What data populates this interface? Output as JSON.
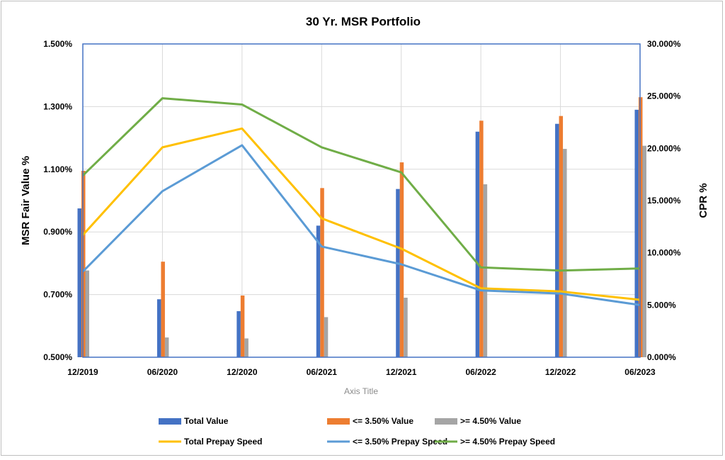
{
  "chart_data": {
    "type": "bar",
    "title": "30 Yr. MSR Portfolio",
    "xlabel": "Axis Title",
    "ylabel_left": "MSR Fair Value %",
    "ylabel_right": "CPR %",
    "categories": [
      "12/2019",
      "06/2020",
      "12/2020",
      "06/2021",
      "12/2021",
      "06/2022",
      "12/2022",
      "06/2023"
    ],
    "ylim_left": [
      0.5,
      1.5
    ],
    "yticks_left": [
      "0.500%",
      "0.700%",
      "0.900%",
      "1.100%",
      "1.300%",
      "1.500%"
    ],
    "ylim_right": [
      0,
      30
    ],
    "yticks_right": [
      "0.000%",
      "5.000%",
      "10.000%",
      "15.000%",
      "20.000%",
      "25.000%",
      "30.000%"
    ],
    "grid": true,
    "legend_position": "bottom",
    "bar_series": [
      {
        "name": "Total Value",
        "axis": "left",
        "color": "#4472c4",
        "values": [
          0.975,
          0.685,
          0.647,
          0.92,
          1.037,
          1.22,
          1.245,
          1.29
        ]
      },
      {
        "name": "<= 3.50% Value",
        "axis": "left",
        "color": "#ed7d31",
        "values": [
          1.095,
          0.805,
          0.697,
          1.04,
          1.122,
          1.255,
          1.27,
          1.33
        ]
      },
      {
        "name": ">= 4.50% Value",
        "axis": "left",
        "color": "#a5a5a5",
        "values": [
          0.777,
          0.563,
          0.56,
          0.628,
          0.69,
          1.052,
          1.165,
          1.175
        ]
      }
    ],
    "line_series": [
      {
        "name": "Total Prepay Speed",
        "axis": "right",
        "color": "#ffc000",
        "values": [
          11.7,
          20.1,
          21.9,
          13.3,
          10.4,
          6.6,
          6.3,
          5.5
        ]
      },
      {
        "name": "<= 3.50% Prepay Speed",
        "axis": "right",
        "color": "#5b9bd5",
        "values": [
          8.2,
          15.9,
          20.3,
          10.6,
          8.9,
          6.4,
          6.1,
          5.0
        ]
      },
      {
        "name": ">= 4.50% Prepay Speed",
        "axis": "right",
        "color": "#70ad47",
        "values": [
          17.4,
          24.8,
          24.2,
          20.1,
          17.7,
          8.6,
          8.3,
          8.5
        ]
      }
    ],
    "legend": [
      {
        "label": "Total Value",
        "kind": "bar",
        "color": "#4472c4"
      },
      {
        "label": "<= 3.50% Value",
        "kind": "bar",
        "color": "#ed7d31"
      },
      {
        "label": ">= 4.50% Value",
        "kind": "bar",
        "color": "#a5a5a5"
      },
      {
        "label": "Total Prepay Speed",
        "kind": "line",
        "color": "#ffc000"
      },
      {
        "label": "<= 3.50% Prepay Speed",
        "kind": "line",
        "color": "#5b9bd5"
      },
      {
        "label": ">= 4.50% Prepay Speed",
        "kind": "line",
        "color": "#70ad47"
      }
    ]
  }
}
